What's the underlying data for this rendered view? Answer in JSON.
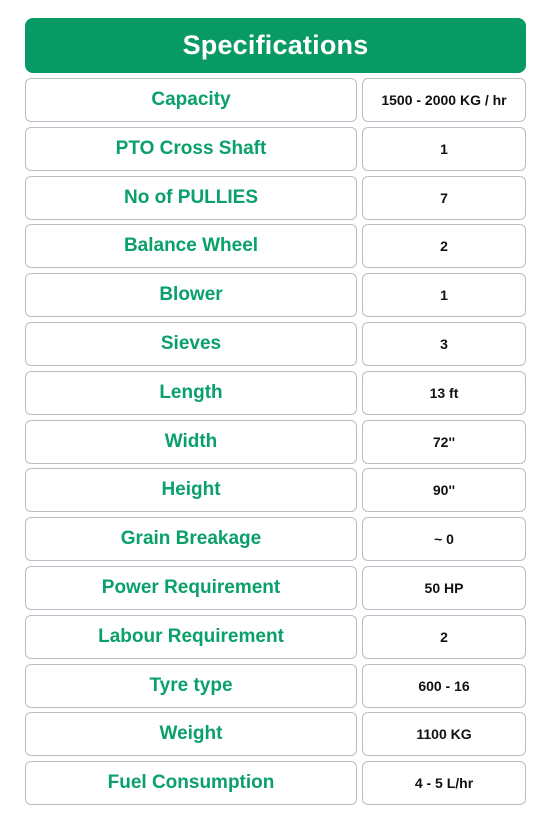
{
  "title": "Specifications",
  "colors": {
    "header_bg": "#079a64",
    "label_text": "#0aa06a",
    "value_text": "#111111",
    "border": "#b9bec4"
  },
  "specs": [
    {
      "label": "Capacity",
      "value": "1500 - 2000 KG / hr"
    },
    {
      "label": "PTO Cross Shaft",
      "value": "1"
    },
    {
      "label": "No of PULLIES",
      "value": "7"
    },
    {
      "label": "Balance Wheel",
      "value": "2"
    },
    {
      "label": "Blower",
      "value": "1"
    },
    {
      "label": "Sieves",
      "value": "3"
    },
    {
      "label": "Length",
      "value": "13 ft"
    },
    {
      "label": "Width",
      "value": "72''"
    },
    {
      "label": "Height",
      "value": "90''"
    },
    {
      "label": "Grain Breakage",
      "value": "~ 0"
    },
    {
      "label": "Power Requirement",
      "value": "50 HP"
    },
    {
      "label": "Labour Requirement",
      "value": "2"
    },
    {
      "label": "Tyre type",
      "value": "600 - 16"
    },
    {
      "label": "Weight",
      "value": "1100 KG"
    },
    {
      "label": "Fuel Consumption",
      "value": "4 - 5 L/hr"
    }
  ]
}
